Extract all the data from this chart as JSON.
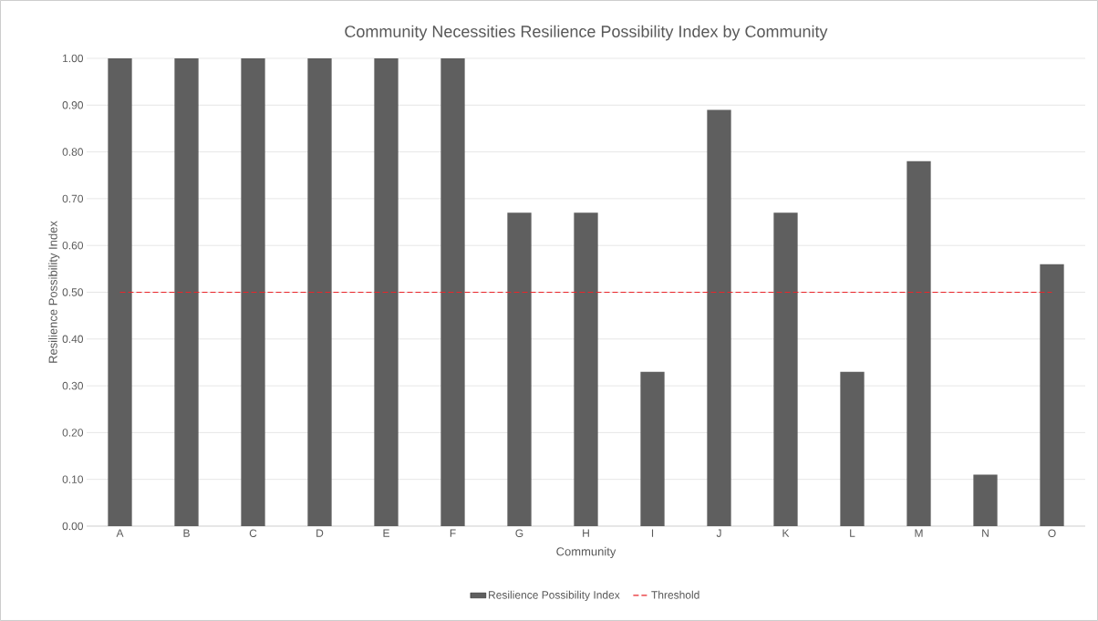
{
  "chart_data": {
    "type": "bar",
    "title": "Community Necessities Resilience Possibility Index by Community",
    "xlabel": "Community",
    "ylabel": "Resilience Possibility Index",
    "categories": [
      "A",
      "B",
      "C",
      "D",
      "E",
      "F",
      "G",
      "H",
      "I",
      "J",
      "K",
      "L",
      "M",
      "N",
      "O"
    ],
    "series": [
      {
        "name": "Resilience Possibility Index",
        "color": "#5f5f5f",
        "values": [
          1.0,
          1.0,
          1.0,
          1.0,
          1.0,
          1.0,
          0.67,
          0.67,
          0.33,
          0.89,
          0.67,
          0.33,
          0.78,
          0.11,
          0.56
        ]
      },
      {
        "name": "Threshold",
        "type": "line",
        "color": "#e8262a",
        "line_style": "dashed",
        "marker": "none",
        "values": [
          0.5,
          0.5,
          0.5,
          0.5,
          0.5,
          0.5,
          0.5,
          0.5,
          0.5,
          0.5,
          0.5,
          0.5,
          0.5,
          0.5,
          0.5
        ]
      }
    ],
    "ylim": [
      0,
      1
    ],
    "yticks": [
      {
        "value": 0,
        "label": "0.00"
      },
      {
        "value": 0.1,
        "label": "0.10"
      },
      {
        "value": 0.2,
        "label": "0.20"
      },
      {
        "value": 0.3,
        "label": "0.30"
      },
      {
        "value": 0.4,
        "label": "0.40"
      },
      {
        "value": 0.5,
        "label": "0.50"
      },
      {
        "value": 0.6,
        "label": "0.60"
      },
      {
        "value": 0.7,
        "label": "0.70"
      },
      {
        "value": 0.8,
        "label": "0.80"
      },
      {
        "value": 0.9,
        "label": "0.90"
      },
      {
        "value": 1,
        "label": "1.00"
      }
    ],
    "grid": "y",
    "legend": "bottom"
  }
}
